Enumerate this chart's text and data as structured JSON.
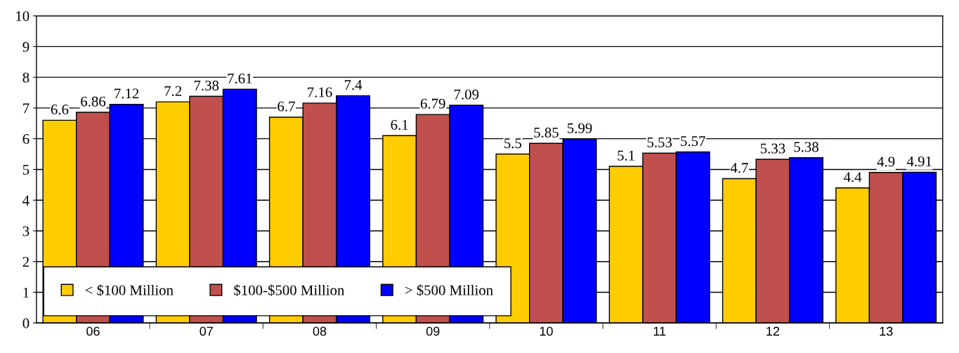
{
  "chart_data": {
    "type": "bar",
    "categories": [
      "06",
      "07",
      "08",
      "09",
      "10",
      "11",
      "12",
      "13"
    ],
    "series": [
      {
        "name": "< $100 Million",
        "color": "#ffcc00",
        "values": [
          6.6,
          7.2,
          6.7,
          6.1,
          5.5,
          5.1,
          4.7,
          4.4
        ]
      },
      {
        "name": "$100-$500 Million",
        "color": "#c0504d",
        "values": [
          6.86,
          7.38,
          7.16,
          6.79,
          5.85,
          5.53,
          5.33,
          4.9
        ]
      },
      {
        "name": "> $500 Million",
        "color": "#0000ff",
        "values": [
          7.12,
          7.61,
          7.4,
          7.09,
          5.99,
          5.57,
          5.38,
          4.91
        ]
      }
    ],
    "ylim": [
      0,
      10
    ],
    "yticks": [
      0,
      1,
      2,
      3,
      4,
      5,
      6,
      7,
      8,
      9,
      10
    ],
    "grid": "y",
    "legend": "bottom left",
    "data_labels": true
  }
}
